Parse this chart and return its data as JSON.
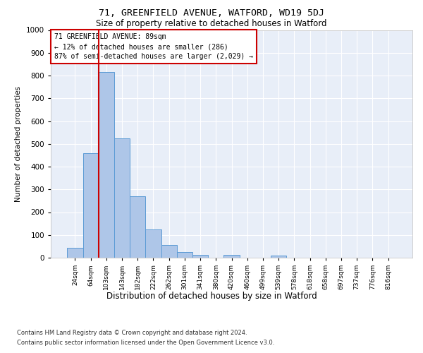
{
  "title1": "71, GREENFIELD AVENUE, WATFORD, WD19 5DJ",
  "title2": "Size of property relative to detached houses in Watford",
  "xlabel": "Distribution of detached houses by size in Watford",
  "ylabel": "Number of detached properties",
  "footnote1": "Contains HM Land Registry data © Crown copyright and database right 2024.",
  "footnote2": "Contains public sector information licensed under the Open Government Licence v3.0.",
  "categories": [
    "24sqm",
    "64sqm",
    "103sqm",
    "143sqm",
    "182sqm",
    "222sqm",
    "262sqm",
    "301sqm",
    "341sqm",
    "380sqm",
    "420sqm",
    "460sqm",
    "499sqm",
    "539sqm",
    "578sqm",
    "618sqm",
    "658sqm",
    "697sqm",
    "737sqm",
    "776sqm",
    "816sqm"
  ],
  "values": [
    42,
    460,
    815,
    525,
    270,
    125,
    55,
    25,
    12,
    0,
    13,
    0,
    0,
    10,
    0,
    0,
    0,
    0,
    0,
    0,
    0
  ],
  "bar_color": "#aec6e8",
  "bar_edge_color": "#5b9bd5",
  "vline_x": 1.5,
  "annotation_text": "71 GREENFIELD AVENUE: 89sqm\n← 12% of detached houses are smaller (286)\n87% of semi-detached houses are larger (2,029) →",
  "annotation_box_color": "#ffffff",
  "annotation_box_edge_color": "#cc0000",
  "ylim": [
    0,
    1000
  ],
  "yticks": [
    0,
    100,
    200,
    300,
    400,
    500,
    600,
    700,
    800,
    900,
    1000
  ],
  "background_color": "#e8eef8",
  "vline_color": "#cc0000",
  "grid_color": "#ffffff",
  "fig_bg": "#ffffff"
}
